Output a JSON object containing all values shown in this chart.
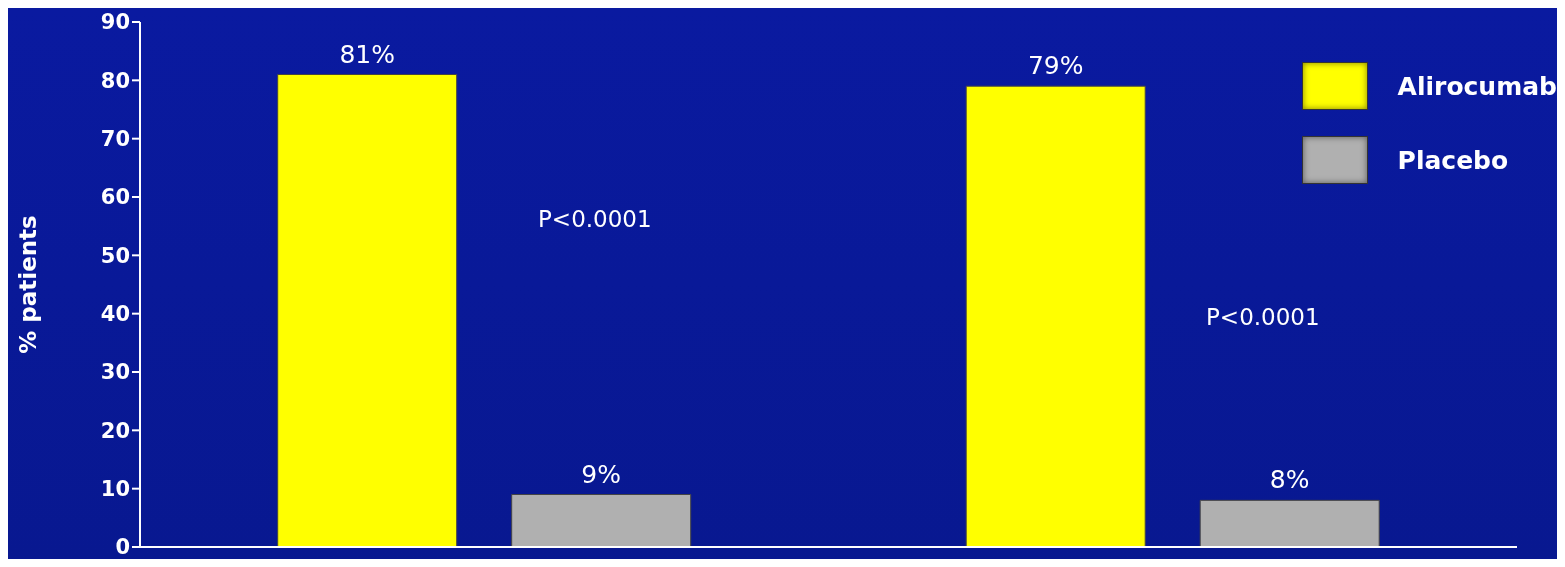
{
  "chart_data": {
    "type": "bar",
    "ylabel": "% patients",
    "categories": [
      null,
      null
    ],
    "series": [
      {
        "name": "Alirocumab",
        "color": "#ffff00",
        "values": [
          81,
          79
        ],
        "value_labels": [
          "81%",
          "79%"
        ]
      },
      {
        "name": "Placebo",
        "color": "#b0b0b0",
        "values": [
          9,
          8
        ],
        "value_labels": [
          "9%",
          "8%"
        ]
      }
    ],
    "ylim": [
      0,
      90
    ],
    "yticks": [
      0,
      10,
      20,
      30,
      40,
      50,
      60,
      70,
      80,
      90
    ],
    "grid": false,
    "legend": "top right",
    "annotations": [
      "P<0.0001",
      "P<0.0001"
    ]
  }
}
